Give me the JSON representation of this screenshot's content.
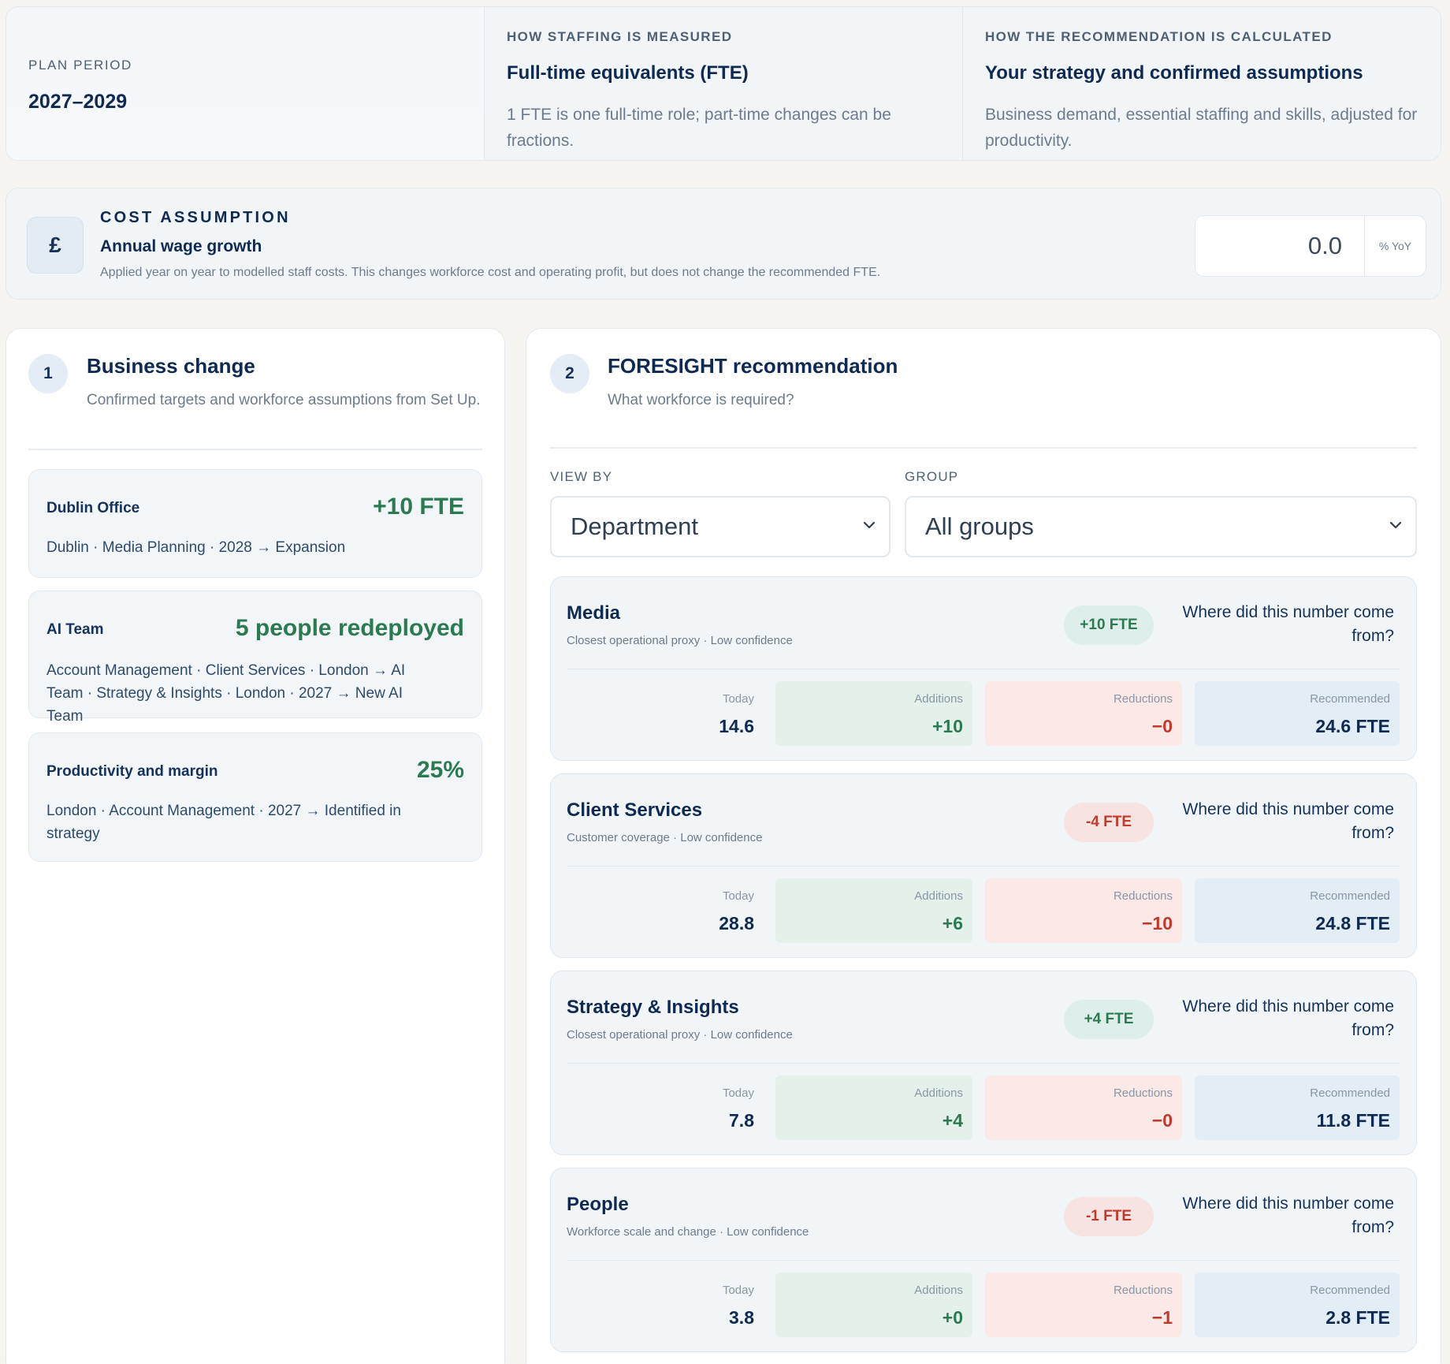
{
  "info": {
    "plan_label": "PLAN PERIOD",
    "plan_value": "2027–2029",
    "staffing_label": "HOW STAFFING IS MEASURED",
    "staffing_title": "Full-time equivalents (FTE)",
    "staffing_desc": "1 FTE is one full-time role; part-time changes can be fractions.",
    "calc_label": "HOW THE RECOMMENDATION IS CALCULATED",
    "calc_title": "Your strategy and confirmed assumptions",
    "calc_desc": "Business demand, essential staffing and skills, adjusted for productivity."
  },
  "cost": {
    "icon_glyph": "£",
    "kicker": "COST ASSUMPTION",
    "title": "Annual wage growth",
    "desc": "Applied year on year to modelled staff costs. This changes workforce cost and operating profit, but does not change the recommended FTE.",
    "value": "0.0",
    "unit": "% YoY"
  },
  "business_change": {
    "step": "1",
    "title": "Business change",
    "subtitle": "Confirmed targets and workforce assumptions from Set Up.",
    "items": [
      {
        "name": "Dublin Office",
        "value": "+10 FTE",
        "detail": "Dublin · Media Planning · 2028 → Expansion"
      },
      {
        "name": "AI Team",
        "value": "5 people redeployed",
        "detail": "Account Management · Client Services · London → AI Team · Strategy & Insights · London · 2027 → New AI Team"
      },
      {
        "name": "Productivity and margin",
        "value": "25%",
        "detail": "London · Account Management · 2027 → Identified in strategy"
      }
    ]
  },
  "recommendation": {
    "step": "2",
    "title": "FORESIGHT recommendation",
    "subtitle": "What workforce is required?",
    "view_by_label": "VIEW BY",
    "view_by_value": "Department",
    "group_label": "GROUP",
    "group_value": "All groups",
    "stat_labels": {
      "today": "Today",
      "additions": "Additions",
      "reductions": "Reductions",
      "recommended": "Recommended"
    },
    "link_text": "Where did this number come from?",
    "departments": [
      {
        "name": "Media",
        "basis": "Closest operational proxy · Low confidence",
        "pill": "+10 FTE",
        "pill_tone": "positive",
        "today": "14.6",
        "additions": "+10",
        "reductions": "−0",
        "recommended": "24.6 FTE"
      },
      {
        "name": "Client Services",
        "basis": "Customer coverage · Low confidence",
        "pill": "-4 FTE",
        "pill_tone": "negative",
        "today": "28.8",
        "additions": "+6",
        "reductions": "−10",
        "recommended": "24.8 FTE"
      },
      {
        "name": "Strategy & Insights",
        "basis": "Closest operational proxy · Low confidence",
        "pill": "+4 FTE",
        "pill_tone": "positive",
        "today": "7.8",
        "additions": "+4",
        "reductions": "−0",
        "recommended": "11.8 FTE"
      },
      {
        "name": "People",
        "basis": "Workforce scale and change · Low confidence",
        "pill": "-1 FTE",
        "pill_tone": "negative",
        "today": "3.8",
        "additions": "+0",
        "reductions": "−1",
        "recommended": "2.8 FTE"
      }
    ]
  },
  "colors": {
    "navy": "#0f2a52",
    "positive": "#2c7a52",
    "negative": "#c0392b",
    "recommended_bg": "#e3edf6"
  }
}
